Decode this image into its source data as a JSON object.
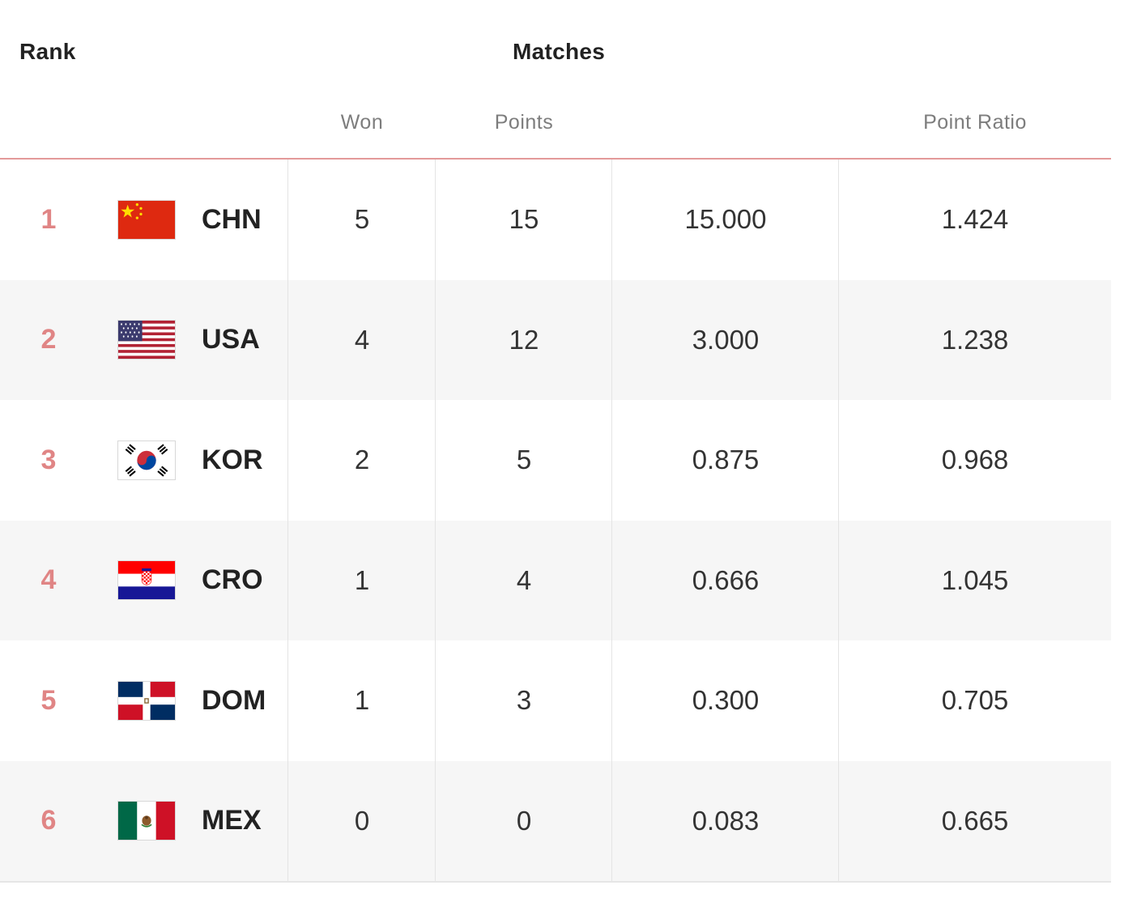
{
  "header": {
    "rank": "Rank",
    "matches": "Matches",
    "won": "Won",
    "points": "Points",
    "point_ratio": "Point Ratio"
  },
  "colors": {
    "rank_accent": "#e08585",
    "header_rule": "#e39a9a",
    "alt_row": "#f6f6f6"
  },
  "rows": [
    {
      "rank": "1",
      "team": "CHN",
      "flag": "china-flag-icon",
      "won": "5",
      "points": "15",
      "set_ratio": "15.000",
      "point_ratio": "1.424"
    },
    {
      "rank": "2",
      "team": "USA",
      "flag": "usa-flag-icon",
      "won": "4",
      "points": "12",
      "set_ratio": "3.000",
      "point_ratio": "1.238"
    },
    {
      "rank": "3",
      "team": "KOR",
      "flag": "korea-flag-icon",
      "won": "2",
      "points": "5",
      "set_ratio": "0.875",
      "point_ratio": "0.968"
    },
    {
      "rank": "4",
      "team": "CRO",
      "flag": "croatia-flag-icon",
      "won": "1",
      "points": "4",
      "set_ratio": "0.666",
      "point_ratio": "1.045"
    },
    {
      "rank": "5",
      "team": "DOM",
      "flag": "dominican-republic-flag-icon",
      "won": "1",
      "points": "3",
      "set_ratio": "0.300",
      "point_ratio": "0.705"
    },
    {
      "rank": "6",
      "team": "MEX",
      "flag": "mexico-flag-icon",
      "won": "0",
      "points": "0",
      "set_ratio": "0.083",
      "point_ratio": "0.665"
    }
  ]
}
